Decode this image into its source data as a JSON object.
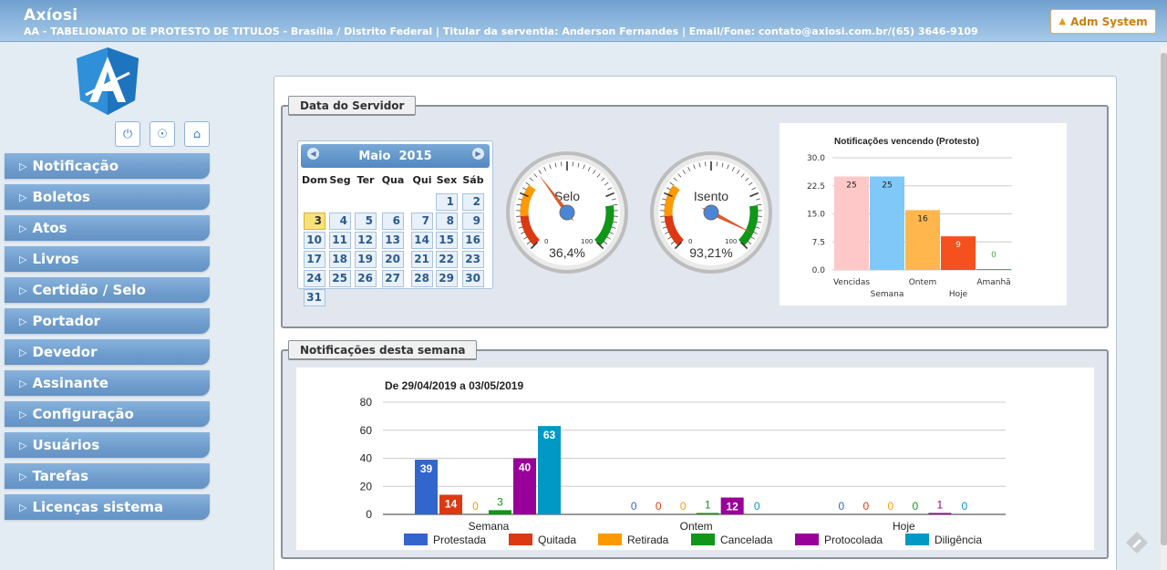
{
  "header": {
    "app_title": "Axíosi",
    "subtitle": "AA - TABELIONATO DE PROTESTO DE TITULOS - Brasília / Distrito Federal | Titular da serventia: Anderson Fernandes | Email/Fone: contato@axiosi.com.br/(65) 3646-9109",
    "adm_button": "Adm System"
  },
  "sidebar": {
    "icons": [
      "power-icon",
      "user-icon",
      "home-icon"
    ],
    "menu": [
      "Notificação",
      "Boletos",
      "Atos",
      "Livros",
      "Certidão / Selo",
      "Portador",
      "Devedor",
      "Assinante",
      "Configuração",
      "Usuários",
      "Tarefas",
      "Licenças sistema"
    ]
  },
  "server_panel": {
    "title": "Data do Servidor",
    "calendar": {
      "month": "Maio",
      "year": "2015",
      "weekdays": [
        "Dom",
        "Seg",
        "Ter",
        "Qua",
        "Qui",
        "Sex",
        "Sáb"
      ],
      "start_weekday": 5,
      "days": 31,
      "selected": 3
    },
    "gauges": [
      {
        "label": "Selo",
        "value_text": "36,4%",
        "value": 36.4,
        "min": "0",
        "max": "100"
      },
      {
        "label": "Isento",
        "value_text": "93,21%",
        "value": 93.21,
        "min": "0",
        "max": "100"
      }
    ]
  },
  "chart_data": [
    {
      "type": "bar",
      "title": "Notificações vencendo (Protesto)",
      "categories": [
        "Vencidas",
        "Semana",
        "Ontem",
        "Hoje",
        "Amanhã"
      ],
      "values": [
        25,
        25,
        16,
        9,
        0
      ],
      "colors": [
        "#ffc8c8",
        "#7fc8f8",
        "#ffb74d",
        "#f4511e",
        "#4caf50"
      ],
      "ylim": [
        0,
        30
      ],
      "yticks": [
        "30.0",
        "22.5",
        "15.0",
        "7.5",
        "0.0"
      ],
      "xlabel": "",
      "ylabel": ""
    },
    {
      "type": "bar",
      "title": "De 29/04/2019 a 03/05/2019",
      "categories": [
        "Semana",
        "Ontem",
        "Hoje"
      ],
      "series": [
        {
          "name": "Protestada",
          "color": "#3366cc",
          "values": [
            39,
            0,
            0
          ]
        },
        {
          "name": "Quitada",
          "color": "#dc3912",
          "values": [
            14,
            0,
            0
          ]
        },
        {
          "name": "Retirada",
          "color": "#ff9900",
          "values": [
            0,
            0,
            0
          ]
        },
        {
          "name": "Cancelada",
          "color": "#109618",
          "values": [
            3,
            1,
            0
          ]
        },
        {
          "name": "Protocolada",
          "color": "#990099",
          "values": [
            40,
            12,
            1
          ]
        },
        {
          "name": "Diligência",
          "color": "#0099c6",
          "values": [
            63,
            0,
            0
          ]
        }
      ],
      "ylim": [
        0,
        80
      ],
      "yticks": [
        "80",
        "60",
        "40",
        "20",
        "0"
      ],
      "xlabel": "",
      "ylabel": "",
      "legend": "bottom"
    }
  ],
  "week_panel": {
    "title": "Notificações desta semana"
  }
}
